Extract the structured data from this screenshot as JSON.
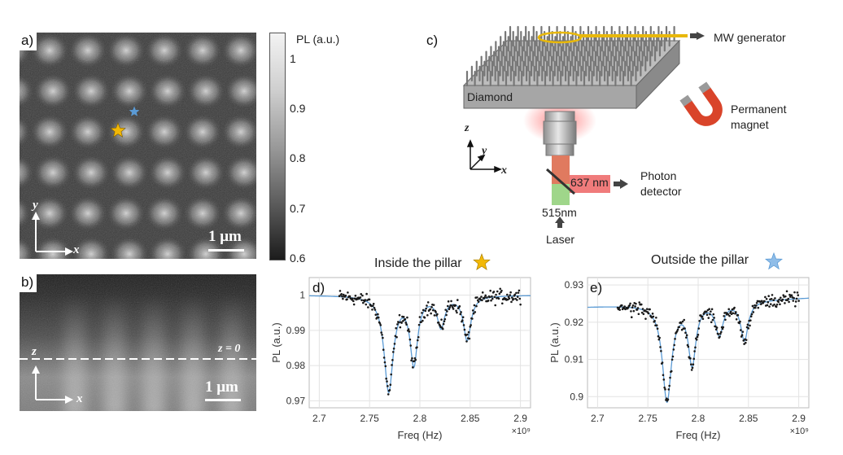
{
  "panels": {
    "a": {
      "label": "a)",
      "axis_y": "y",
      "axis_x": "x",
      "scalebar": "1 μm"
    },
    "b": {
      "label": "b)",
      "axis_z": "z",
      "axis_x": "x",
      "scalebar": "1 μm",
      "z_line_label": "z = 0"
    },
    "c": {
      "label": "c)"
    },
    "d": {
      "label": "d)"
    },
    "e": {
      "label": "e)"
    }
  },
  "colorbar": {
    "title": "PL (a.u.)",
    "ticks": [
      "1",
      "0.9",
      "0.8",
      "0.7",
      "0.6"
    ]
  },
  "setup": {
    "mw_generator": "MW generator",
    "diamond": "Diamond",
    "permanent_magnet_line1": "Permanent",
    "permanent_magnet_line2": "magnet",
    "photon_detector_line1": "Photon",
    "photon_detector_line2": "detector",
    "wavelength_red": "637 nm",
    "wavelength_green": "515nm",
    "laser": "Laser",
    "axis_z": "z",
    "axis_y": "y",
    "axis_x": "x"
  },
  "titles": {
    "inside": "Inside the pillar",
    "outside": "Outside the pillar"
  },
  "colors": {
    "data_points": "#1a1a1a",
    "fit_line": "#5b9bd5",
    "star_gold": "#f2b807",
    "star_blue": "#5b9bd5",
    "red_beam": "#f07b7b",
    "green_beam": "#9fd68a",
    "magnet_red": "#d9442a",
    "magnet_gray": "#9a9a9a"
  },
  "chart_data": [
    {
      "type": "scatter",
      "panel": "d",
      "xlabel": "Freq (Hz)",
      "ylabel": "PL (a.u.)",
      "x_exponent_label": "×10⁹",
      "xlim": [
        2.69,
        2.91
      ],
      "ylim": [
        0.968,
        1.005
      ],
      "xticks": [
        2.7,
        2.75,
        2.8,
        2.85,
        2.9
      ],
      "xtick_labels": [
        "2.7",
        "2.75",
        "2.8",
        "2.85",
        "2.9"
      ],
      "yticks": [
        0.97,
        0.98,
        0.99,
        1.0
      ],
      "ytick_labels": [
        "0.97",
        "0.98",
        "0.99",
        "1"
      ],
      "grid": true,
      "fit": {
        "baseline": 1.0,
        "slope": 0.0,
        "dips": [
          {
            "center": 2.769,
            "depth": 0.027,
            "width": 0.0055
          },
          {
            "center": 2.794,
            "depth": 0.019,
            "width": 0.0045
          },
          {
            "center": 2.821,
            "depth": 0.0085,
            "width": 0.0045
          },
          {
            "center": 2.847,
            "depth": 0.0125,
            "width": 0.0045
          }
        ]
      },
      "x_range_data": [
        2.72,
        2.9
      ],
      "noise": 0.0014
    },
    {
      "type": "scatter",
      "panel": "e",
      "xlabel": "Freq (Hz)",
      "ylabel": "PL (a.u.)",
      "x_exponent_label": "×10⁹",
      "xlim": [
        2.69,
        2.91
      ],
      "ylim": [
        0.897,
        0.932
      ],
      "xticks": [
        2.7,
        2.75,
        2.8,
        2.85,
        2.9
      ],
      "xtick_labels": [
        "2.7",
        "2.75",
        "2.8",
        "2.85",
        "2.9"
      ],
      "yticks": [
        0.9,
        0.91,
        0.92,
        0.93
      ],
      "ytick_labels": [
        "0.9",
        "0.91",
        "0.92",
        "0.93"
      ],
      "grid": true,
      "fit": {
        "baseline": 0.9255,
        "slope": 0.011,
        "dips": [
          {
            "center": 2.769,
            "depth": 0.026,
            "width": 0.0055
          },
          {
            "center": 2.794,
            "depth": 0.016,
            "width": 0.0045
          },
          {
            "center": 2.821,
            "depth": 0.0085,
            "width": 0.0045
          },
          {
            "center": 2.846,
            "depth": 0.0105,
            "width": 0.0045
          }
        ]
      },
      "x_range_data": [
        2.72,
        2.9
      ],
      "noise": 0.0013
    }
  ]
}
